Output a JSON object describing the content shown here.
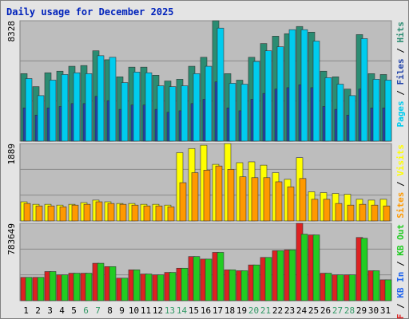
{
  "chart_data": [
    {
      "type": "bar",
      "title": "Daily usage for December 2025",
      "ylim": [
        0,
        8328
      ],
      "yticks": [
        8328
      ],
      "grid": true,
      "legend_separator": " / ",
      "legend_reversed": true,
      "series": [
        {
          "name": "Hits",
          "color": "#2b8c72",
          "values": [
            4670,
            3770,
            4730,
            4840,
            5180,
            5230,
            6250,
            5630,
            4450,
            5120,
            5120,
            4560,
            4160,
            4280,
            5180,
            5800,
            8328,
            4670,
            4220,
            5800,
            6750,
            7260,
            7430,
            7930,
            7540,
            4840,
            4450,
            3600,
            7370,
            4670,
            4610
          ]
        },
        {
          "name": "Files",
          "color": "#2244aa",
          "values": [
            2300,
            1800,
            2300,
            2400,
            2600,
            2600,
            3100,
            2800,
            2200,
            2500,
            2500,
            2200,
            2000,
            2100,
            2600,
            2900,
            4100,
            2300,
            2100,
            2900,
            3300,
            3600,
            3700,
            3900,
            3700,
            2400,
            2200,
            1800,
            3600,
            2300,
            2300
          ]
        },
        {
          "name": "Pages",
          "color": "#00ccee",
          "values": [
            4330,
            3150,
            4220,
            4610,
            4730,
            4670,
            5910,
            5800,
            4050,
            4780,
            4730,
            3830,
            3770,
            3830,
            4670,
            5180,
            7820,
            4000,
            3940,
            5510,
            6250,
            6530,
            7710,
            7710,
            6920,
            4390,
            3940,
            3150,
            7090,
            4280,
            4220
          ]
        }
      ]
    },
    {
      "type": "bar",
      "ylim": [
        0,
        1889
      ],
      "yticks": [
        1889
      ],
      "grid": true,
      "legend_separator": " / ",
      "legend_reversed": true,
      "series": [
        {
          "name": "Visits",
          "color": "#ffff00",
          "values": [
            467,
            406,
            406,
            386,
            406,
            447,
            508,
            467,
            426,
            426,
            406,
            406,
            386,
            1666,
            1767,
            1848,
            1381,
            1889,
            1422,
            1442,
            1361,
            1178,
            1016,
            1544,
            711,
            691,
            670,
            650,
            528,
            508,
            528
          ]
        },
        {
          "name": "Sites",
          "color": "#ff9900",
          "values": [
            426,
            366,
            366,
            345,
            386,
            406,
            467,
            426,
            406,
            386,
            366,
            366,
            345,
            934,
            1178,
            1239,
            1341,
            1259,
            1077,
            1056,
            1056,
            955,
            833,
            1036,
            528,
            528,
            426,
            386,
            406,
            386,
            366
          ]
        }
      ]
    },
    {
      "type": "bar",
      "ylim": [
        0,
        783649
      ],
      "yticks": [
        783649
      ],
      "grid": true,
      "legend_separator": " / ",
      "legend_reversed": false,
      "categories": [
        "1",
        "2",
        "3",
        "4",
        "5",
        "6",
        "7",
        "8",
        "9",
        "10",
        "11",
        "12",
        "13",
        "14",
        "15",
        "16",
        "17",
        "18",
        "19",
        "20",
        "21",
        "22",
        "23",
        "24",
        "25",
        "26",
        "27",
        "28",
        "29",
        "30",
        "31"
      ],
      "weekend": [
        false,
        false,
        false,
        false,
        false,
        true,
        true,
        false,
        false,
        false,
        false,
        false,
        true,
        true,
        false,
        false,
        false,
        false,
        false,
        true,
        true,
        false,
        false,
        false,
        false,
        false,
        true,
        true,
        false,
        false,
        false
      ],
      "label_color": "#000000",
      "weekend_color": "#339966",
      "series": [
        {
          "name": "KB F",
          "color": "#dd2222",
          "values": [
            236000,
            236000,
            295000,
            261000,
            278000,
            278000,
            379000,
            345000,
            228000,
            312000,
            270000,
            261000,
            286000,
            329000,
            447000,
            421000,
            489000,
            312000,
            303000,
            362000,
            438000,
            506000,
            514000,
            783649,
            666000,
            278000,
            261000,
            261000,
            640000,
            303000,
            211000
          ]
        },
        {
          "name": "KB In",
          "color": "#2266ee",
          "values": [
            0,
            0,
            0,
            0,
            0,
            0,
            0,
            0,
            0,
            0,
            0,
            0,
            0,
            0,
            0,
            0,
            0,
            0,
            0,
            0,
            0,
            0,
            0,
            0,
            0,
            0,
            0,
            0,
            0,
            0,
            0
          ]
        },
        {
          "name": "KB Out",
          "color": "#22cc22",
          "values": [
            236000,
            236000,
            295000,
            261000,
            278000,
            278000,
            379000,
            345000,
            228000,
            312000,
            270000,
            261000,
            286000,
            329000,
            447000,
            421000,
            489000,
            312000,
            303000,
            362000,
            438000,
            506000,
            514000,
            674000,
            666000,
            278000,
            261000,
            261000,
            632000,
            303000,
            211000
          ]
        }
      ]
    }
  ]
}
